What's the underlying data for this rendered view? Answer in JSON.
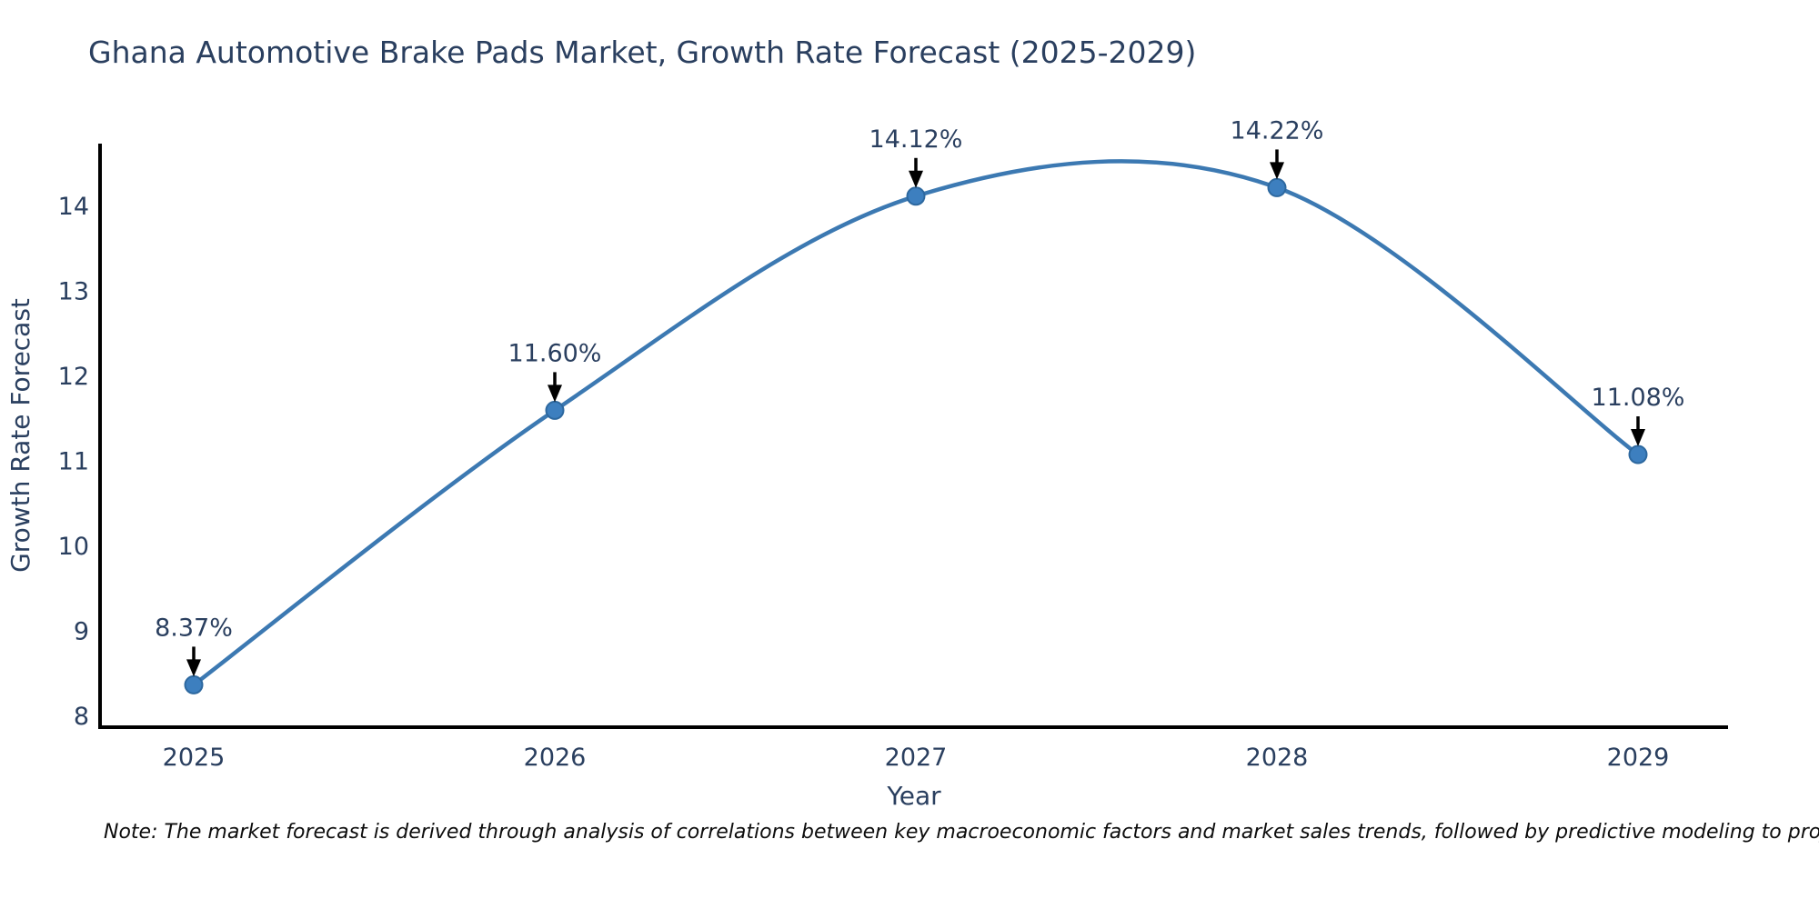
{
  "title": "Ghana Automotive Brake Pads Market, Growth Rate Forecast (2025-2029)",
  "note": "Note: The market forecast is derived through analysis of correlations between key macroeconomic factors and market sales trends, followed by predictive modeling to project future sales.",
  "chart_data": {
    "type": "line",
    "x": [
      2025,
      2026,
      2027,
      2028,
      2029
    ],
    "values": [
      8.37,
      11.6,
      14.12,
      14.22,
      11.08
    ],
    "point_labels": [
      "8.37%",
      "11.60%",
      "14.12%",
      "14.22%",
      "11.08%"
    ],
    "title": "Ghana Automotive Brake Pads Market, Growth Rate Forecast (2025-2029)",
    "xlabel": "Year",
    "ylabel": "Growth Rate Forecast",
    "xticks": [
      "2025",
      "2026",
      "2027",
      "2028",
      "2029"
    ],
    "yticks": [
      8,
      9,
      10,
      11,
      12,
      13,
      14
    ],
    "ylim": [
      7.87,
      14.72
    ],
    "grid": false,
    "legend": false,
    "line_style": "smooth-spline",
    "annotations": "black down-arrows from labels to markers",
    "colors": {
      "line": "#3c79b2",
      "marker_fill": "#3d7fbf",
      "marker_stroke": "#2d689f",
      "axis": "#000000",
      "text": "#2a3f5f",
      "arrow": "#000000",
      "note_text": "#0d0d0d"
    }
  }
}
